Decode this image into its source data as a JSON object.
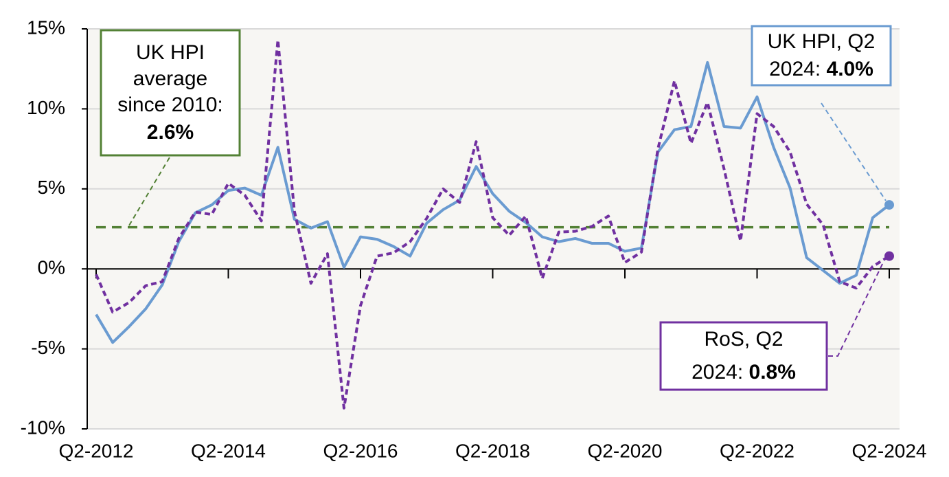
{
  "chart_data": {
    "type": "line",
    "categories": [
      "Q2-2012",
      null,
      null,
      null,
      null,
      null,
      null,
      null,
      "Q2-2014",
      null,
      null,
      null,
      null,
      null,
      null,
      null,
      "Q2-2016",
      null,
      null,
      null,
      null,
      null,
      null,
      null,
      "Q2-2018",
      null,
      null,
      null,
      null,
      null,
      null,
      null,
      "Q2-2020",
      null,
      null,
      null,
      null,
      null,
      null,
      null,
      "Q2-2022",
      null,
      null,
      null,
      null,
      null,
      null,
      null,
      "Q2-2024"
    ],
    "series": [
      {
        "color": "#6a9bd1",
        "dash": "solid",
        "values": [
          -2.85,
          -4.6,
          -3.6,
          -2.5,
          -1.0,
          1.7,
          3.5,
          4.0,
          4.9,
          5.05,
          4.6,
          7.6,
          3.1,
          2.55,
          2.95,
          0.1,
          2.0,
          1.85,
          1.4,
          0.8,
          2.85,
          3.7,
          4.3,
          6.4,
          4.7,
          3.6,
          2.9,
          2.0,
          1.7,
          1.9,
          1.6,
          1.6,
          1.1,
          1.3,
          7.3,
          8.7,
          8.9,
          12.9,
          8.9,
          8.8,
          10.75,
          7.6,
          5.05,
          0.7,
          -0.1,
          -0.9,
          -0.4,
          3.2,
          4.0
        ]
      },
      {
        "color": "#7030a0",
        "dash": "dotted",
        "values": [
          -0.35,
          -2.7,
          -2.1,
          -1.05,
          -0.8,
          1.9,
          3.55,
          3.4,
          5.35,
          4.6,
          3.0,
          14.3,
          3.6,
          -0.9,
          0.95,
          -8.7,
          -2.3,
          0.8,
          1.0,
          1.7,
          3.15,
          5.0,
          4.15,
          7.95,
          3.2,
          2.1,
          3.3,
          -0.6,
          2.3,
          2.35,
          2.65,
          3.3,
          0.4,
          1.05,
          7.5,
          11.75,
          7.85,
          10.4,
          6.25,
          1.75,
          9.7,
          8.9,
          7.3,
          4.05,
          2.75,
          -0.8,
          -1.2,
          0.15,
          0.8
        ]
      }
    ],
    "reference_line": {
      "value": 2.6,
      "color": "#538135"
    },
    "ylim": [
      -10,
      15
    ],
    "yticks": [
      {
        "value": -10,
        "label": "-10%"
      },
      {
        "value": -5,
        "label": "-5%"
      },
      {
        "value": 0,
        "label": "0%"
      },
      {
        "value": 5,
        "label": "5%"
      },
      {
        "value": 10,
        "label": "10%"
      },
      {
        "value": 15,
        "label": "15%"
      }
    ],
    "grid": true,
    "annotations": [
      {
        "lines": [
          "UK HPI",
          "average",
          "since 2010:"
        ],
        "bold": "2.6%",
        "color": "#538135"
      },
      {
        "lines": [
          "UK HPI, Q2",
          "2024:"
        ],
        "bold": "4.0%",
        "color": "#6a9bd1"
      },
      {
        "lines": [
          "RoS, Q2",
          "2024:"
        ],
        "bold": "0.8%",
        "color": "#7030a0"
      }
    ]
  }
}
